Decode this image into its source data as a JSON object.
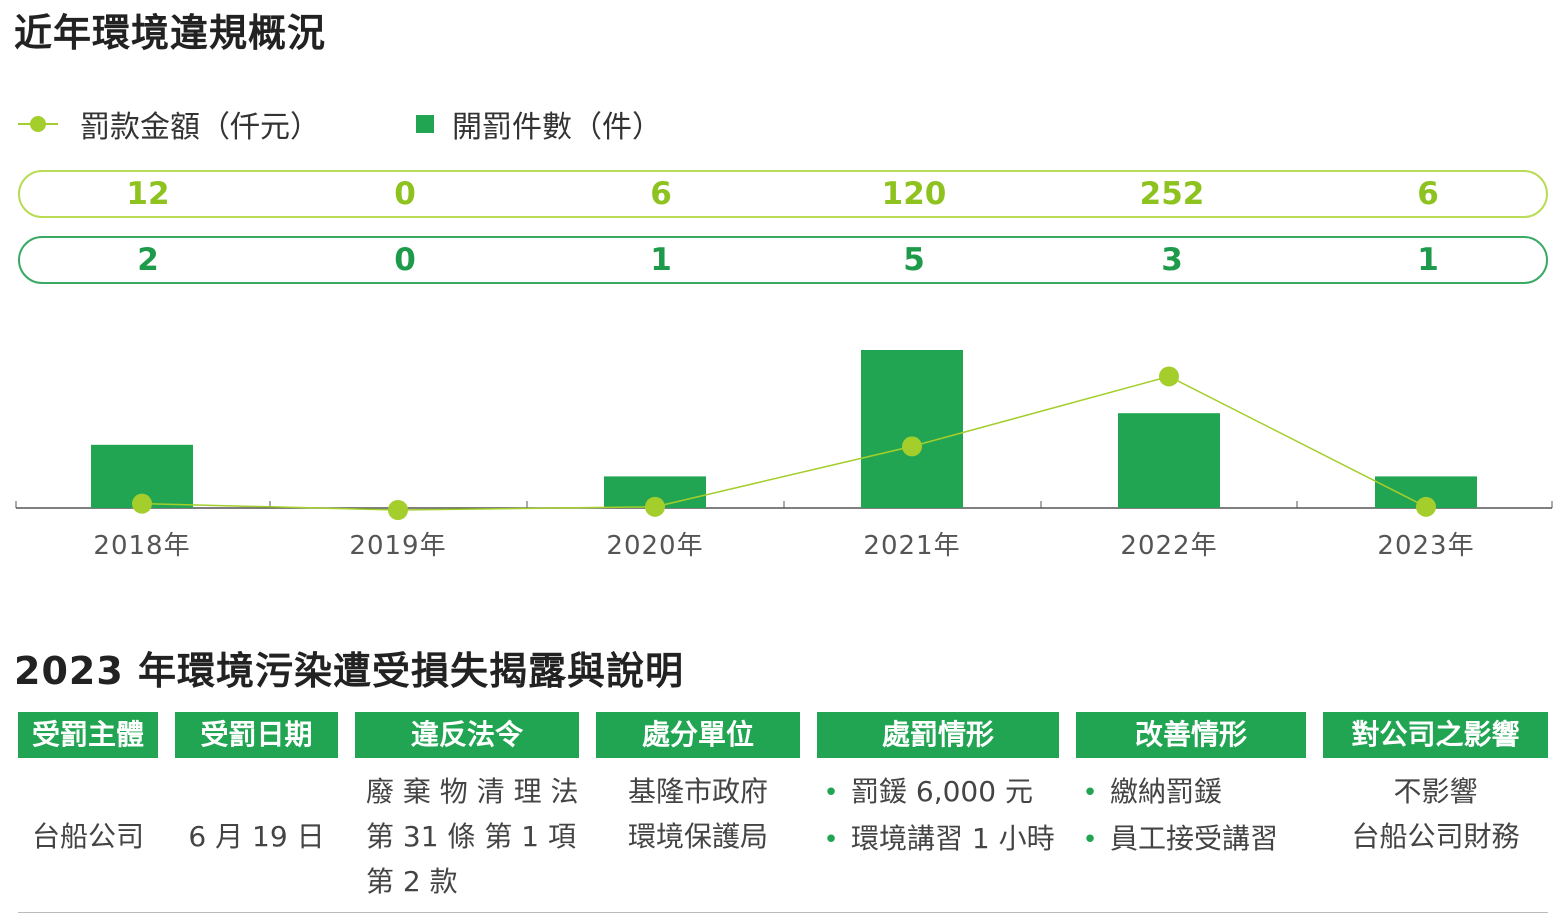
{
  "section1": {
    "title": "近年環境違規概況"
  },
  "legend": {
    "line_label": "罰款金額（仟元）",
    "bar_label": "開罰件數（件）"
  },
  "chart_data": {
    "type": "bar",
    "categories": [
      "2018年",
      "2019年",
      "2020年",
      "2021年",
      "2022年",
      "2023年"
    ],
    "series": [
      {
        "name": "開罰件數（件）",
        "type": "bar",
        "values": [
          2,
          0,
          1,
          5,
          3,
          1
        ]
      },
      {
        "name": "罰款金額（仟元）",
        "type": "line",
        "values": [
          12,
          0,
          6,
          120,
          252,
          6
        ]
      }
    ],
    "colors": {
      "bar": "#22a552",
      "line": "#a3ce2b",
      "fine_text": "#8dc21f",
      "count_text": "#1e9a4b"
    }
  },
  "fine_row": [
    "12",
    "0",
    "6",
    "120",
    "252",
    "6"
  ],
  "count_row": [
    "2",
    "0",
    "1",
    "5",
    "3",
    "1"
  ],
  "section2": {
    "title": "2023 年環境污染遭受損失揭露與說明"
  },
  "table": {
    "headers": [
      "受罰主體",
      "受罰日期",
      "違反法令",
      "處分單位",
      "處罰情形",
      "改善情形",
      "對公司之影響"
    ],
    "row": {
      "entity": "台船公司",
      "date": "6 月 19 日",
      "law": [
        "廢 棄 物 清 理 法",
        "第 31 條 第 1 項",
        "第 2 款"
      ],
      "agency": [
        "基隆市政府",
        "環境保護局"
      ],
      "penalty": [
        "罰鍰 6,000 元",
        "環境講習 1 小時"
      ],
      "improvement": [
        "繳納罰鍰",
        "員工接受講習"
      ],
      "impact": [
        "不影響",
        "台船公司財務"
      ],
      "bullet": "•"
    }
  }
}
